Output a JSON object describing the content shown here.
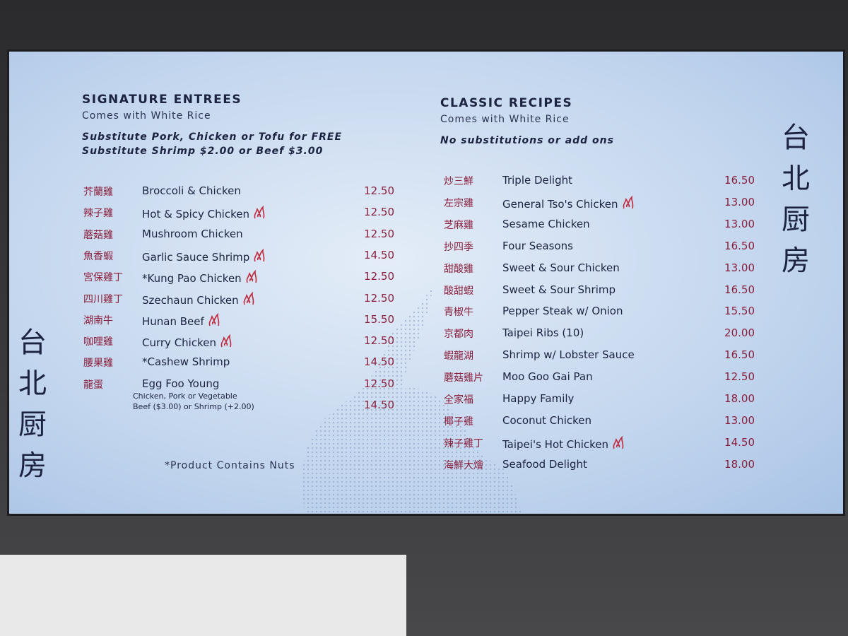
{
  "brand": "台北厨房",
  "left": {
    "title": "SIGNATURE ENTREES",
    "subtitle": "Comes with White Rice",
    "notes": [
      "Substitute Pork, Chicken or Tofu for FREE",
      "Substitute Shrimp $2.00 or Beef $3.00"
    ],
    "items": [
      {
        "chinese": "芥蘭雞",
        "name": "Broccoli & Chicken",
        "price": "12.50",
        "spicy": false
      },
      {
        "chinese": "辣子雞",
        "name": "Hot & Spicy Chicken",
        "price": "12.50",
        "spicy": true
      },
      {
        "chinese": "蘑菇雞",
        "name": "Mushroom Chicken",
        "price": "12.50",
        "spicy": false
      },
      {
        "chinese": "魚香蝦",
        "name": "Garlic Sauce Shrimp",
        "price": "14.50",
        "spicy": true
      },
      {
        "chinese": "宮保雞丁",
        "name": "*Kung Pao Chicken",
        "price": "12.50",
        "spicy": true
      },
      {
        "chinese": "四川雞丁",
        "name": "Szechaun Chicken",
        "price": "12.50",
        "spicy": true
      },
      {
        "chinese": "湖南牛",
        "name": "Hunan Beef",
        "price": "15.50",
        "spicy": true
      },
      {
        "chinese": "咖哩雞",
        "name": "Curry Chicken",
        "price": "12.50",
        "spicy": true
      },
      {
        "chinese": "腰果雞",
        "name": "*Cashew Shrimp",
        "price": "14.50",
        "spicy": false
      },
      {
        "chinese": "龍蛋",
        "name": "Egg Foo Young",
        "price": "12.50",
        "spicy": false
      }
    ],
    "egg_options": {
      "lines": [
        "Chicken, Pork or Vegetable",
        "Beef ($3.00) or Shrimp (+2.00)"
      ],
      "price": "14.50"
    },
    "footnote": "*Product Contains Nuts"
  },
  "right": {
    "title": "CLASSIC RECIPES",
    "subtitle": "Comes with White Rice",
    "notes": [
      "No substitutions or add ons"
    ],
    "items": [
      {
        "chinese": "炒三鮮",
        "name": "Triple Delight",
        "price": "16.50",
        "spicy": false
      },
      {
        "chinese": "左宗雞",
        "name": "General Tso's Chicken",
        "price": "13.00",
        "spicy": true
      },
      {
        "chinese": "芝麻雞",
        "name": "Sesame Chicken",
        "price": "13.00",
        "spicy": false
      },
      {
        "chinese": "抄四季",
        "name": "Four Seasons",
        "price": "16.50",
        "spicy": false
      },
      {
        "chinese": "甜酸雞",
        "name": "Sweet & Sour Chicken",
        "price": "13.00",
        "spicy": false
      },
      {
        "chinese": "酸甜蝦",
        "name": "Sweet & Sour Shrimp",
        "price": "16.50",
        "spicy": false
      },
      {
        "chinese": "青椒牛",
        "name": "Pepper Steak w/ Onion",
        "price": "15.50",
        "spicy": false
      },
      {
        "chinese": "京都肉",
        "name": "Taipei Ribs (10)",
        "price": "20.00",
        "spicy": false
      },
      {
        "chinese": "蝦龍湖",
        "name": "Shrimp w/ Lobster Sauce",
        "price": "16.50",
        "spicy": false
      },
      {
        "chinese": "蘑菇雞片",
        "name": "Moo Goo Gai Pan",
        "price": "12.50",
        "spicy": false
      },
      {
        "chinese": "全家福",
        "name": "Happy Family",
        "price": "18.00",
        "spicy": false
      },
      {
        "chinese": "椰子雞",
        "name": "Coconut Chicken",
        "price": "13.00",
        "spicy": false
      },
      {
        "chinese": "辣子雞丁",
        "name": "Taipei's Hot Chicken",
        "price": "14.50",
        "spicy": true
      },
      {
        "chinese": "海鮮大燴",
        "name": "Seafood Delight",
        "price": "18.00",
        "spicy": false
      }
    ]
  }
}
